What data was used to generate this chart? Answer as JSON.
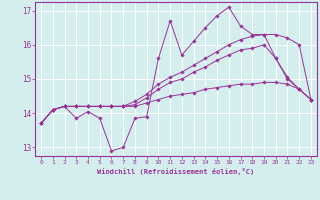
{
  "xlabel": "Windchill (Refroidissement éolien,°C)",
  "background_color": "#d4eeee",
  "grid_color": "#ffffff",
  "line_color": "#993399",
  "xlim": [
    -0.5,
    23.5
  ],
  "ylim": [
    12.75,
    17.25
  ],
  "yticks": [
    13,
    14,
    15,
    16,
    17
  ],
  "xticks": [
    0,
    1,
    2,
    3,
    4,
    5,
    6,
    7,
    8,
    9,
    10,
    11,
    12,
    13,
    14,
    15,
    16,
    17,
    18,
    19,
    20,
    21,
    22,
    23
  ],
  "series": [
    [
      13.7,
      14.1,
      14.2,
      13.85,
      14.05,
      13.85,
      12.9,
      13.0,
      13.85,
      13.9,
      15.6,
      16.7,
      15.7,
      16.1,
      16.5,
      16.85,
      17.1,
      16.55,
      16.3,
      16.3,
      15.6,
      15.0,
      14.7,
      14.4
    ],
    [
      13.7,
      14.1,
      14.2,
      14.2,
      14.2,
      14.2,
      14.2,
      14.2,
      14.35,
      14.55,
      14.85,
      15.05,
      15.2,
      15.4,
      15.6,
      15.8,
      16.0,
      16.15,
      16.25,
      16.3,
      16.3,
      16.2,
      16.0,
      14.4
    ],
    [
      13.7,
      14.1,
      14.2,
      14.2,
      14.2,
      14.2,
      14.2,
      14.2,
      14.25,
      14.45,
      14.7,
      14.9,
      15.0,
      15.2,
      15.35,
      15.55,
      15.7,
      15.85,
      15.9,
      16.0,
      15.6,
      15.05,
      14.7,
      14.4
    ],
    [
      13.7,
      14.1,
      14.2,
      14.2,
      14.2,
      14.2,
      14.2,
      14.2,
      14.2,
      14.3,
      14.4,
      14.5,
      14.55,
      14.6,
      14.7,
      14.75,
      14.8,
      14.85,
      14.85,
      14.9,
      14.9,
      14.85,
      14.7,
      14.4
    ]
  ]
}
